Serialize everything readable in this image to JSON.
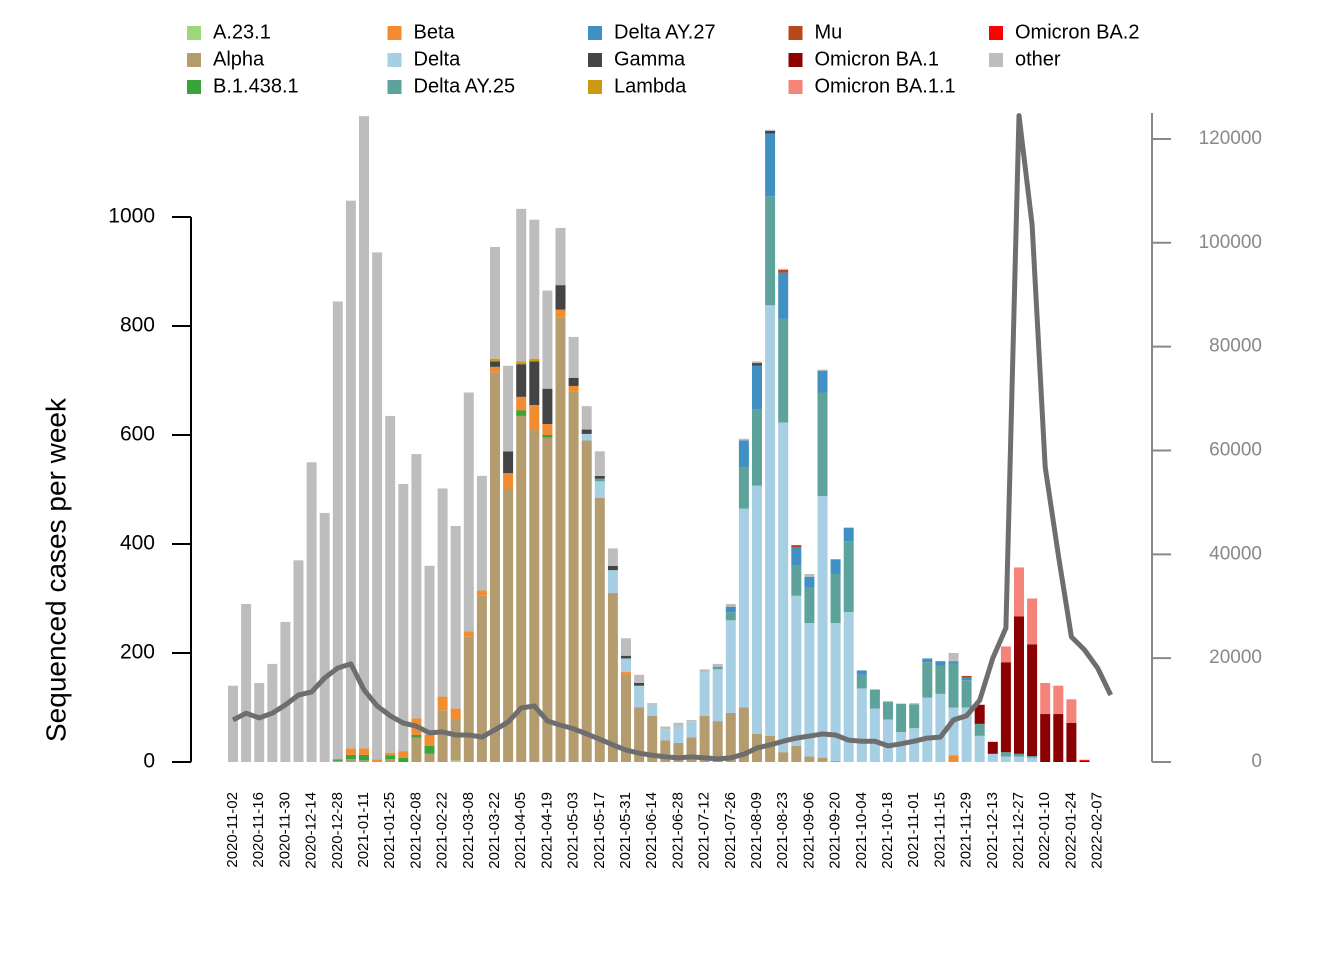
{
  "chart_data": {
    "type": "bar",
    "stacked": true,
    "y_label": "Sequenced cases per week",
    "categories": [
      "2020-11-02",
      null,
      "2020-11-16",
      null,
      "2020-11-30",
      null,
      "2020-12-14",
      null,
      "2020-12-28",
      null,
      "2021-01-11",
      null,
      "2021-01-25",
      null,
      "2021-02-08",
      null,
      "2021-02-22",
      null,
      "2021-03-08",
      null,
      "2021-03-22",
      null,
      "2021-04-05",
      null,
      "2021-04-19",
      null,
      "2021-05-03",
      null,
      "2021-05-17",
      null,
      "2021-05-31",
      null,
      "2021-06-14",
      null,
      "2021-06-28",
      null,
      "2021-07-12",
      null,
      "2021-07-26",
      null,
      "2021-08-09",
      null,
      "2021-08-23",
      null,
      "2021-09-06",
      null,
      "2021-09-20",
      null,
      "2021-10-04",
      null,
      "2021-10-18",
      null,
      "2021-11-01",
      null,
      "2021-11-15",
      null,
      "2021-11-29",
      null,
      "2021-12-13",
      null,
      "2021-12-27",
      null,
      "2022-01-10",
      null,
      "2022-01-24",
      null,
      "2022-02-07",
      null
    ],
    "ylim": [
      0,
      1000
    ],
    "yticks": [
      0,
      200,
      400,
      600,
      800,
      1000
    ],
    "y2lim": [
      0,
      125000
    ],
    "y2ticks": [
      0,
      20000,
      40000,
      60000,
      80000,
      100000,
      120000
    ],
    "legend": "top",
    "series": [
      {
        "name": "A.23.1",
        "color": "#9ed67a",
        "values": [
          0,
          0,
          0,
          0,
          0,
          0,
          0,
          0,
          0,
          0,
          0,
          0,
          0,
          0,
          0,
          0,
          0,
          3,
          0,
          0,
          0,
          0,
          0,
          0,
          0,
          0,
          0,
          0,
          0,
          0,
          0,
          0,
          0,
          0,
          0,
          0,
          0,
          0,
          0,
          0,
          0,
          0,
          0,
          0,
          0,
          0,
          0,
          0,
          0,
          0,
          0,
          0,
          0,
          0,
          0,
          0,
          0,
          0,
          0,
          0,
          0,
          0,
          0,
          0,
          0,
          0,
          0,
          0
        ]
      },
      {
        "name": "Alpha",
        "color": "#b59c6e",
        "values": [
          0,
          0,
          0,
          0,
          0,
          0,
          0,
          0,
          2,
          5,
          3,
          0,
          5,
          0,
          45,
          15,
          95,
          75,
          230,
          305,
          715,
          500,
          635,
          610,
          595,
          815,
          680,
          590,
          485,
          310,
          160,
          100,
          85,
          40,
          35,
          45,
          85,
          75,
          90,
          100,
          52,
          48,
          18,
          30,
          10,
          8,
          2,
          0,
          0,
          0,
          0,
          0,
          0,
          0,
          0,
          0,
          0,
          0,
          0,
          0,
          0,
          0,
          0,
          0,
          0,
          0,
          0,
          0
        ]
      },
      {
        "name": "B.1.438.1",
        "color": "#3aa33a",
        "values": [
          0,
          0,
          0,
          0,
          0,
          0,
          0,
          0,
          3,
          8,
          10,
          0,
          7,
          8,
          5,
          15,
          0,
          0,
          0,
          0,
          0,
          0,
          10,
          0,
          5,
          0,
          0,
          0,
          0,
          0,
          0,
          0,
          0,
          0,
          0,
          0,
          0,
          0,
          0,
          0,
          0,
          0,
          0,
          0,
          0,
          0,
          0,
          0,
          0,
          0,
          0,
          0,
          0,
          0,
          0,
          0,
          0,
          0,
          0,
          0,
          0,
          0,
          0,
          0,
          0,
          0,
          0,
          0
        ]
      },
      {
        "name": "Beta",
        "color": "#f28c30",
        "values": [
          0,
          0,
          0,
          0,
          0,
          0,
          0,
          0,
          0,
          12,
          12,
          5,
          5,
          12,
          30,
          20,
          25,
          20,
          10,
          10,
          10,
          30,
          25,
          45,
          20,
          15,
          10,
          0,
          0,
          0,
          5,
          0,
          0,
          0,
          0,
          0,
          0,
          0,
          0,
          0,
          0,
          0,
          0,
          0,
          0,
          0,
          0,
          0,
          0,
          0,
          0,
          0,
          0,
          0,
          0,
          12,
          0,
          0,
          0,
          0,
          0,
          0,
          0,
          0,
          0,
          0,
          0,
          0
        ]
      },
      {
        "name": "Delta",
        "color": "#a6cfe3",
        "values": [
          0,
          0,
          0,
          0,
          0,
          0,
          0,
          0,
          0,
          0,
          0,
          0,
          0,
          0,
          0,
          0,
          0,
          0,
          0,
          0,
          0,
          0,
          0,
          0,
          0,
          0,
          0,
          12,
          30,
          42,
          25,
          40,
          20,
          20,
          30,
          30,
          80,
          95,
          170,
          365,
          455,
          790,
          605,
          275,
          245,
          480,
          253,
          275,
          135,
          98,
          78,
          55,
          62,
          118,
          125,
          88,
          100,
          48,
          15,
          10,
          10,
          8,
          0,
          0,
          0,
          0,
          0,
          0
        ]
      },
      {
        "name": "Delta AY.25",
        "color": "#5da39c",
        "values": [
          0,
          0,
          0,
          0,
          0,
          0,
          0,
          0,
          0,
          0,
          0,
          0,
          0,
          0,
          0,
          0,
          0,
          0,
          0,
          0,
          0,
          0,
          0,
          0,
          0,
          0,
          0,
          0,
          5,
          0,
          0,
          0,
          0,
          0,
          0,
          0,
          0,
          5,
          15,
          75,
          140,
          200,
          190,
          55,
          65,
          190,
          90,
          130,
          25,
          35,
          32,
          52,
          44,
          65,
          52,
          80,
          50,
          22,
          0,
          8,
          5,
          3,
          0,
          0,
          0,
          0,
          0,
          0
        ]
      },
      {
        "name": "Delta AY.27",
        "color": "#4190c4",
        "values": [
          0,
          0,
          0,
          0,
          0,
          0,
          0,
          0,
          0,
          0,
          0,
          0,
          0,
          0,
          0,
          0,
          0,
          0,
          0,
          0,
          0,
          0,
          0,
          0,
          0,
          0,
          0,
          0,
          0,
          0,
          0,
          0,
          0,
          0,
          0,
          0,
          0,
          0,
          10,
          50,
          80,
          115,
          85,
          33,
          20,
          40,
          27,
          25,
          8,
          0,
          0,
          0,
          0,
          7,
          8,
          5,
          5,
          0,
          0,
          0,
          0,
          0,
          0,
          0,
          0,
          0,
          0,
          0
        ]
      },
      {
        "name": "Gamma",
        "color": "#444444",
        "values": [
          0,
          0,
          0,
          0,
          0,
          0,
          0,
          0,
          0,
          0,
          0,
          0,
          0,
          0,
          0,
          0,
          0,
          0,
          0,
          0,
          10,
          40,
          60,
          80,
          65,
          45,
          15,
          8,
          5,
          8,
          5,
          5,
          0,
          0,
          0,
          0,
          0,
          0,
          0,
          0,
          5,
          5,
          0,
          0,
          0,
          0,
          0,
          0,
          0,
          0,
          0,
          0,
          0,
          0,
          0,
          0,
          0,
          0,
          0,
          0,
          0,
          0,
          0,
          0,
          0,
          0,
          0,
          0
        ]
      },
      {
        "name": "Lambda",
        "color": "#cc9a10",
        "values": [
          0,
          0,
          0,
          0,
          0,
          0,
          0,
          0,
          0,
          0,
          0,
          0,
          0,
          0,
          0,
          0,
          0,
          0,
          0,
          0,
          5,
          0,
          5,
          5,
          0,
          0,
          0,
          0,
          0,
          0,
          0,
          0,
          0,
          0,
          0,
          0,
          0,
          0,
          0,
          0,
          0,
          0,
          0,
          0,
          0,
          0,
          0,
          0,
          0,
          0,
          0,
          0,
          0,
          0,
          0,
          0,
          0,
          0,
          0,
          0,
          0,
          0,
          0,
          0,
          0,
          0,
          0,
          0
        ]
      },
      {
        "name": "Mu",
        "color": "#b8471b",
        "values": [
          0,
          0,
          0,
          0,
          0,
          0,
          0,
          0,
          0,
          0,
          0,
          0,
          0,
          0,
          0,
          0,
          0,
          0,
          0,
          0,
          0,
          0,
          0,
          0,
          0,
          0,
          0,
          0,
          0,
          0,
          0,
          0,
          0,
          0,
          0,
          0,
          0,
          0,
          0,
          0,
          0,
          0,
          5,
          5,
          0,
          0,
          0,
          0,
          0,
          0,
          0,
          0,
          0,
          0,
          0,
          0,
          3,
          0,
          0,
          0,
          0,
          0,
          0,
          0,
          0,
          0,
          0,
          0
        ]
      },
      {
        "name": "Omicron BA.1",
        "color": "#8b0000",
        "values": [
          0,
          0,
          0,
          0,
          0,
          0,
          0,
          0,
          0,
          0,
          0,
          0,
          0,
          0,
          0,
          0,
          0,
          0,
          0,
          0,
          0,
          0,
          0,
          0,
          0,
          0,
          0,
          0,
          0,
          0,
          0,
          0,
          0,
          0,
          0,
          0,
          0,
          0,
          0,
          0,
          0,
          0,
          0,
          0,
          0,
          0,
          0,
          0,
          0,
          0,
          0,
          0,
          0,
          0,
          0,
          0,
          0,
          35,
          22,
          165,
          252,
          205,
          88,
          88,
          72,
          2,
          0,
          0
        ]
      },
      {
        "name": "Omicron BA.1.1",
        "color": "#f4837a",
        "values": [
          0,
          0,
          0,
          0,
          0,
          0,
          0,
          0,
          0,
          0,
          0,
          0,
          0,
          0,
          0,
          0,
          0,
          0,
          0,
          0,
          0,
          0,
          0,
          0,
          0,
          0,
          0,
          0,
          0,
          0,
          0,
          0,
          0,
          0,
          0,
          0,
          0,
          0,
          0,
          0,
          0,
          0,
          0,
          0,
          0,
          0,
          0,
          0,
          0,
          0,
          0,
          0,
          0,
          0,
          0,
          0,
          0,
          0,
          0,
          29,
          90,
          84,
          57,
          52,
          43,
          0,
          0,
          0
        ]
      },
      {
        "name": "Omicron BA.2",
        "color": "#ff0000",
        "values": [
          0,
          0,
          0,
          0,
          0,
          0,
          0,
          0,
          0,
          0,
          0,
          0,
          0,
          0,
          0,
          0,
          0,
          0,
          0,
          0,
          0,
          0,
          0,
          0,
          0,
          0,
          0,
          0,
          0,
          0,
          0,
          0,
          0,
          0,
          0,
          0,
          0,
          0,
          0,
          0,
          0,
          0,
          0,
          0,
          0,
          0,
          0,
          0,
          0,
          0,
          0,
          0,
          0,
          0,
          0,
          0,
          0,
          0,
          0,
          0,
          0,
          0,
          0,
          0,
          0,
          2,
          0,
          0
        ]
      },
      {
        "name": "other",
        "color": "#bdbdbd",
        "values": [
          140,
          290,
          145,
          180,
          257,
          370,
          550,
          457,
          840,
          1005,
          1160,
          930,
          618,
          490,
          485,
          310,
          382,
          335,
          438,
          210,
          205,
          157,
          280,
          255,
          180,
          105,
          75,
          43,
          45,
          32,
          32,
          15,
          3,
          5,
          7,
          2,
          5,
          5,
          5,
          3,
          3,
          2,
          2,
          0,
          5,
          2,
          0,
          0,
          0,
          0,
          2,
          0,
          2,
          0,
          0,
          15,
          0,
          0,
          0,
          0,
          0,
          0,
          0,
          0,
          0,
          0,
          0,
          0
        ]
      },
      {
        "type": "line",
        "axis": "y2",
        "color": "#6e6e6e",
        "values": [
          8100,
          9400,
          8500,
          9400,
          11000,
          12900,
          13500,
          16200,
          18100,
          18900,
          13900,
          10800,
          8900,
          7500,
          6900,
          5600,
          5800,
          5200,
          5200,
          4800,
          6200,
          7700,
          10400,
          10800,
          7900,
          7100,
          6400,
          5400,
          4400,
          3300,
          2300,
          1700,
          1300,
          1000,
          800,
          1000,
          800,
          600,
          800,
          1500,
          2700,
          3300,
          4000,
          4600,
          5000,
          5400,
          5200,
          4200,
          4000,
          4000,
          3100,
          3500,
          4000,
          4600,
          4800,
          8100,
          8900,
          11900,
          20000,
          25800,
          124500,
          103500,
          56800,
          39900,
          24100,
          21600,
          18100,
          12900
        ]
      }
    ]
  }
}
